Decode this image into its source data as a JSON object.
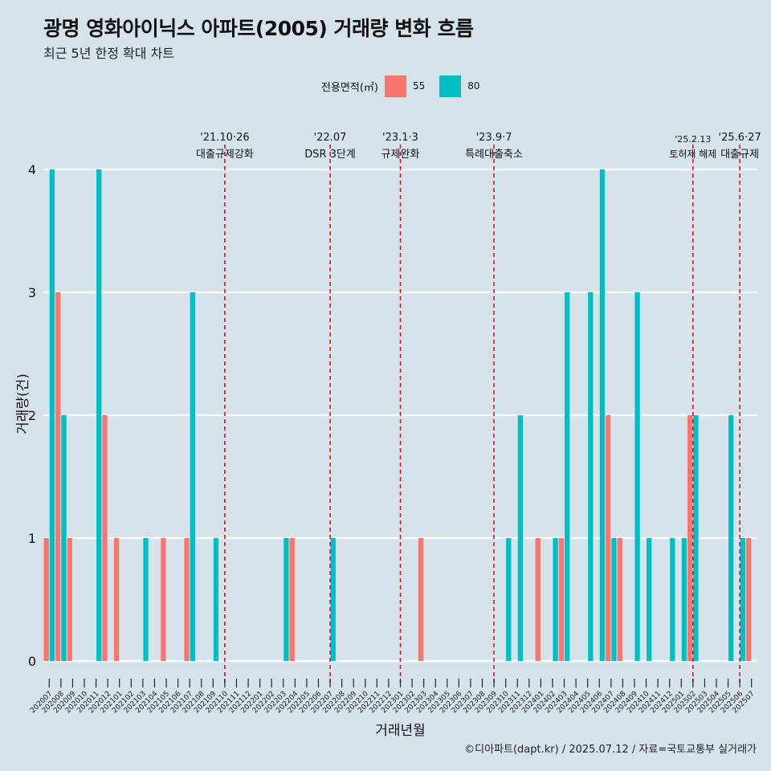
{
  "header": {
    "title": "광명 영화아이닉스 아파트(2005) 거래량 변화 흐름",
    "subtitle": "최근 5년 한정 확대 차트"
  },
  "legend": {
    "title": "전용면적(㎡)",
    "items": [
      {
        "label": "55",
        "color": "#f8766d"
      },
      {
        "label": "80",
        "color": "#00bfc4"
      }
    ]
  },
  "caption": "©디아파트(dapt.kr) / 2025.07.12 / 자료=국토교통부 실거래가",
  "chart_data": {
    "type": "bar",
    "xlabel": "거래년월",
    "ylabel": "거래량(건)",
    "ylim": [
      0,
      4
    ],
    "yticks": [
      0,
      1,
      2,
      3,
      4
    ],
    "grid": true,
    "legend_position": "top",
    "categories": [
      "202007",
      "202008",
      "202009",
      "202010",
      "202011",
      "202012",
      "202101",
      "202102",
      "202103",
      "202104",
      "202105",
      "202106",
      "202107",
      "202108",
      "202109",
      "202110",
      "202111",
      "202112",
      "202201",
      "202202",
      "202203",
      "202204",
      "202205",
      "202206",
      "202207",
      "202208",
      "202209",
      "202210",
      "202211",
      "202212",
      "202301",
      "202302",
      "202303",
      "202304",
      "202305",
      "202306",
      "202307",
      "202308",
      "202309",
      "202310",
      "202311",
      "202312",
      "202401",
      "202402",
      "202403",
      "202404",
      "202405",
      "202406",
      "202407",
      "202408",
      "202409",
      "202410",
      "202411",
      "202412",
      "202501",
      "202502",
      "202503",
      "202504",
      "202505",
      "202506",
      "202507"
    ],
    "series": [
      {
        "name": "55",
        "color": "#f8766d",
        "values": [
          1,
          3,
          1,
          0,
          0,
          2,
          1,
          0,
          0,
          0,
          1,
          0,
          1,
          0,
          0,
          0,
          0,
          0,
          0,
          0,
          0,
          1,
          0,
          0,
          0,
          0,
          0,
          0,
          0,
          0,
          0,
          0,
          1,
          0,
          0,
          0,
          0,
          0,
          0,
          0,
          0,
          0,
          1,
          0,
          1,
          0,
          0,
          0,
          2,
          1,
          0,
          0,
          0,
          0,
          0,
          2,
          0,
          0,
          0,
          0,
          1
        ]
      },
      {
        "name": "80",
        "color": "#00bfc4",
        "values": [
          4,
          2,
          0,
          0,
          4,
          0,
          0,
          0,
          1,
          0,
          0,
          0,
          3,
          0,
          1,
          0,
          0,
          0,
          0,
          0,
          1,
          0,
          0,
          0,
          1,
          0,
          0,
          0,
          0,
          0,
          0,
          0,
          0,
          0,
          0,
          0,
          0,
          0,
          0,
          1,
          2,
          0,
          0,
          1,
          3,
          0,
          3,
          4,
          1,
          0,
          3,
          1,
          0,
          1,
          1,
          2,
          0,
          0,
          2,
          1,
          0
        ]
      }
    ],
    "events": [
      {
        "date": "202110",
        "label_top": "'21.10·26",
        "label_bottom": "대출규제강화"
      },
      {
        "date": "202207",
        "label_top": "'22.07",
        "label_bottom": "DSR 3단계"
      },
      {
        "date": "202301",
        "label_top": "'23.1·3",
        "label_bottom": "규제완화"
      },
      {
        "date": "202309",
        "label_top": "'23.9·7",
        "label_bottom": "특례대출축소"
      },
      {
        "date": "202502",
        "label_top": "'25.2.13",
        "label_bottom": "토허제 해제"
      },
      {
        "date": "202506",
        "label_top": "'25.6·27",
        "label_bottom": "대출규제"
      }
    ]
  }
}
